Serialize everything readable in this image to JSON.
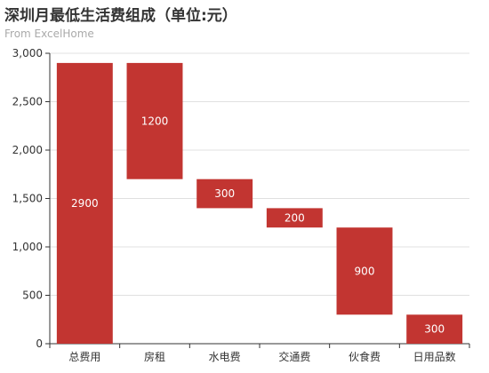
{
  "title": "深圳月最低生活费组成（单位:元）",
  "subtitle": "From ExcelHome",
  "colors": {
    "bar": "#c23531",
    "grid": "#e0e0e0",
    "axis": "#333333"
  },
  "chart_data": {
    "type": "bar",
    "subtype": "waterfall",
    "categories": [
      "总费用",
      "房租",
      "水电费",
      "交通费",
      "伙食费",
      "日用品数"
    ],
    "values": [
      2900,
      1200,
      300,
      200,
      900,
      300
    ],
    "base": [
      0,
      1700,
      1400,
      1200,
      300,
      0
    ],
    "data_labels": [
      "2900",
      "1200",
      "300",
      "200",
      "900",
      "300"
    ],
    "ylim": [
      0,
      3000
    ],
    "yticks": [
      0,
      500,
      1000,
      1500,
      2000,
      2500,
      3000
    ],
    "ytick_labels": [
      "0",
      "500",
      "1,000",
      "1,500",
      "2,000",
      "2,500",
      "3,000"
    ],
    "grid": true,
    "xlabel": "",
    "ylabel": ""
  }
}
